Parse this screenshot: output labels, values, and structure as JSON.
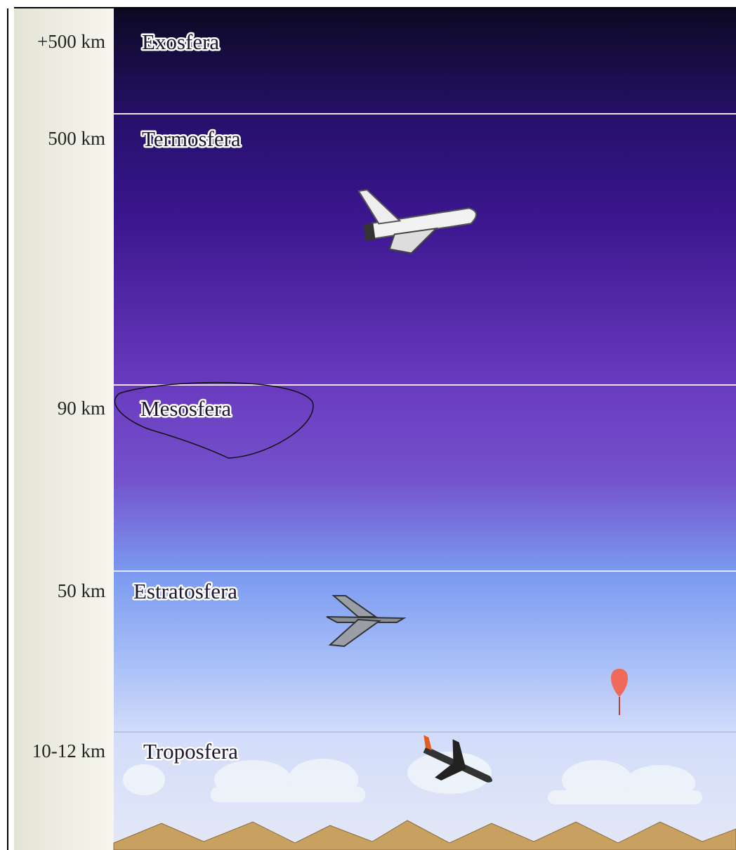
{
  "layers": [
    {
      "altitude": "+500 km",
      "name": "Exosfera"
    },
    {
      "altitude": "500 km",
      "name": "Termosfera"
    },
    {
      "altitude": "90 km",
      "name": "Mesosfera"
    },
    {
      "altitude": "50 km",
      "name": "Estratosfera"
    },
    {
      "altitude": "10-12 km",
      "name": "Troposfera"
    }
  ]
}
